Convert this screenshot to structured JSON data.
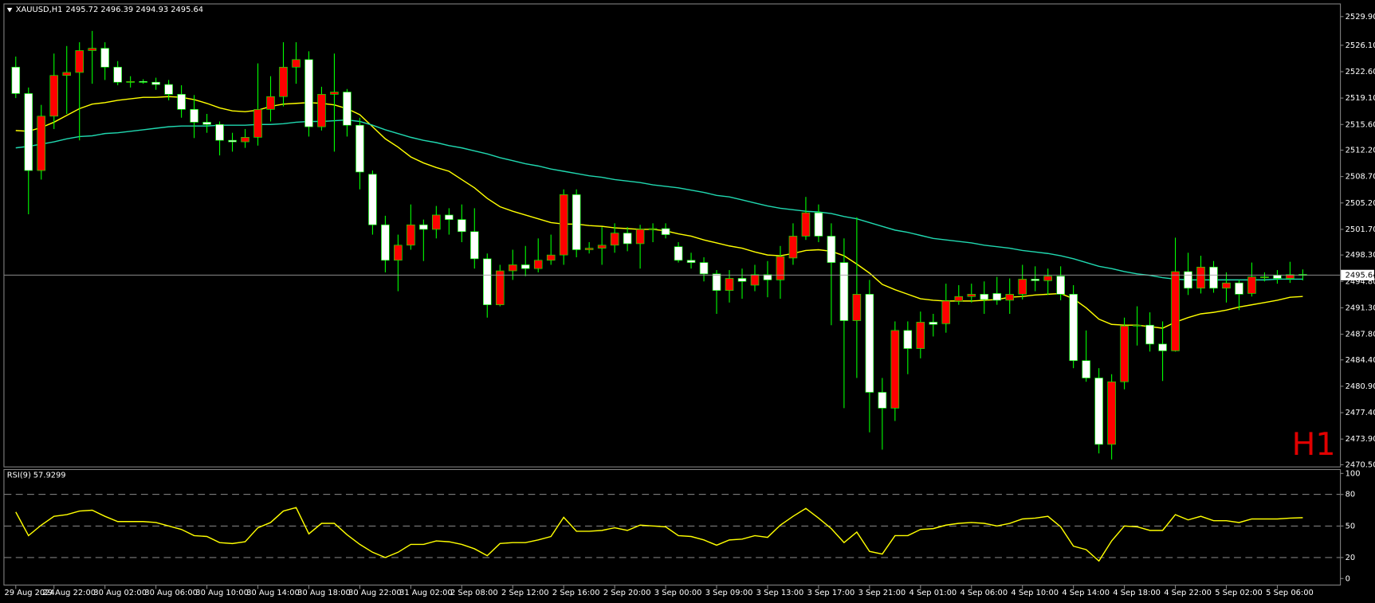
{
  "chart_data": [
    {
      "type": "candlestick",
      "title": "XAUUSD,H1",
      "up_color": "#ff0000",
      "down_color": "#ffffff",
      "wick_color": "#00ff00",
      "open": [
        2523.2,
        2519.7,
        2509.5,
        2516.7,
        2522.1,
        2522.5,
        2525.4,
        2525.7,
        2523.2,
        2521.2,
        2521.3,
        2521.2,
        2520.9,
        2519.6,
        2517.6,
        2515.9,
        2515.6,
        2513.5,
        2513.3,
        2513.9,
        2517.6,
        2519.3,
        2523.2,
        2524.2,
        2515.3,
        2519.6,
        2519.9,
        2515.5,
        2509.0,
        2502.3,
        2497.6,
        2499.6,
        2502.3,
        2501.7,
        2503.6,
        2503.0,
        2501.4,
        2497.8,
        2491.7,
        2496.2,
        2497.0,
        2496.5,
        2497.6,
        2498.3,
        2506.3,
        2499.0,
        2499.2,
        2499.6,
        2501.2,
        2499.8,
        2501.7,
        2501.8,
        2499.4,
        2497.6,
        2497.3,
        2495.8,
        2493.6,
        2495.2,
        2494.3,
        2495.7,
        2495.0,
        2497.9,
        2500.8,
        2503.9,
        2500.8,
        2497.3,
        2489.6,
        2493.1,
        2480.1,
        2478.0,
        2488.3,
        2485.9,
        2489.4,
        2489.2,
        2492.2,
        2492.8,
        2493.1,
        2493.2,
        2492.3,
        2493.1,
        2495.1,
        2494.9,
        2495.5,
        2493.1,
        2484.3,
        2482.0,
        2473.2,
        2481.5,
        2488.9,
        2489.0,
        2486.5,
        2485.6,
        2496.1,
        2493.9,
        2496.7,
        2493.9,
        2494.6,
        2493.2,
        2495.4,
        2495.6,
        2495.2,
        2495.72
      ],
      "high": [
        2524.6,
        2520.5,
        2518.2,
        2525.0,
        2526.0,
        2526.5,
        2528.0,
        2526.5,
        2524.0,
        2522.0,
        2521.6,
        2521.8,
        2521.5,
        2520.8,
        2519.5,
        2517.0,
        2516.0,
        2514.5,
        2515.0,
        2523.7,
        2522.0,
        2526.5,
        2526.5,
        2525.3,
        2520.6,
        2525.0,
        2520.3,
        2516.5,
        2509.5,
        2503.5,
        2501.0,
        2505.0,
        2503.0,
        2504.8,
        2504.5,
        2505.0,
        2504.5,
        2498.5,
        2497.0,
        2499.0,
        2499.5,
        2500.5,
        2501.0,
        2507.0,
        2507.0,
        2500.0,
        2502.0,
        2502.5,
        2502.0,
        2502.3,
        2502.5,
        2502.5,
        2500.0,
        2498.6,
        2498.0,
        2496.3,
        2496.3,
        2496.5,
        2497.0,
        2497.5,
        2499.5,
        2502.5,
        2506.0,
        2505.0,
        2502.5,
        2500.5,
        2503.3,
        2495.0,
        2482.0,
        2489.5,
        2489.5,
        2490.8,
        2490.5,
        2494.5,
        2494.3,
        2494.5,
        2494.8,
        2495.4,
        2495.2,
        2497.0,
        2496.8,
        2496.5,
        2496.8,
        2494.3,
        2488.3,
        2483.3,
        2482.5,
        2490.0,
        2491.5,
        2490.7,
        2489.5,
        2500.6,
        2498.6,
        2498.2,
        2497.5,
        2496.0,
        2495.0,
        2497.3,
        2496.0,
        2496.3,
        2497.4,
        2496.39
      ],
      "low": [
        2519.1,
        2503.7,
        2508.3,
        2515.0,
        2517.0,
        2513.5,
        2521.0,
        2521.5,
        2520.8,
        2520.5,
        2521.0,
        2520.2,
        2518.8,
        2516.5,
        2513.8,
        2514.5,
        2511.5,
        2512.0,
        2512.5,
        2512.8,
        2516.0,
        2518.0,
        2521.0,
        2514.0,
        2514.8,
        2512.0,
        2514.0,
        2507.0,
        2501.0,
        2496.0,
        2493.5,
        2499.0,
        2497.5,
        2500.5,
        2501.0,
        2500.0,
        2496.5,
        2490.0,
        2491.5,
        2495.0,
        2495.5,
        2496.0,
        2497.0,
        2497.0,
        2498.0,
        2498.5,
        2497.0,
        2498.6,
        2498.8,
        2496.5,
        2500.0,
        2500.5,
        2497.3,
        2496.5,
        2494.8,
        2490.5,
        2492.0,
        2492.5,
        2493.5,
        2492.7,
        2492.5,
        2497.0,
        2500.3,
        2500.0,
        2489.0,
        2478.0,
        2482.0,
        2474.8,
        2472.5,
        2476.3,
        2482.5,
        2484.6,
        2487.5,
        2488.0,
        2491.7,
        2492.0,
        2490.5,
        2491.7,
        2490.5,
        2492.4,
        2493.5,
        2493.0,
        2492.3,
        2483.3,
        2481.5,
        2472.0,
        2471.2,
        2480.5,
        2486.3,
        2485.5,
        2481.6,
        2485.5,
        2493.0,
        2493.2,
        2493.3,
        2492.0,
        2491.0,
        2492.8,
        2494.8,
        2494.5,
        2494.6,
        2494.93
      ],
      "close": [
        2519.7,
        2509.5,
        2516.7,
        2522.1,
        2522.5,
        2525.4,
        2525.7,
        2523.2,
        2521.2,
        2521.3,
        2521.2,
        2520.9,
        2519.6,
        2517.6,
        2515.9,
        2515.6,
        2513.5,
        2513.3,
        2513.9,
        2517.6,
        2519.3,
        2523.2,
        2524.2,
        2515.3,
        2519.6,
        2519.9,
        2515.5,
        2509.3,
        2502.3,
        2497.6,
        2499.6,
        2502.3,
        2501.7,
        2503.6,
        2503.0,
        2501.4,
        2497.8,
        2491.7,
        2496.2,
        2497.0,
        2496.5,
        2497.6,
        2498.3,
        2506.3,
        2499.0,
        2499.2,
        2499.6,
        2501.2,
        2499.8,
        2501.7,
        2501.8,
        2501.0,
        2497.6,
        2497.3,
        2495.8,
        2493.6,
        2495.2,
        2494.8,
        2495.7,
        2495.0,
        2498.1,
        2500.8,
        2503.9,
        2500.8,
        2497.3,
        2489.6,
        2493.1,
        2480.1,
        2478.0,
        2488.3,
        2485.9,
        2489.4,
        2489.1,
        2492.2,
        2492.8,
        2493.1,
        2492.4,
        2492.3,
        2493.1,
        2495.1,
        2494.9,
        2495.5,
        2493.1,
        2484.3,
        2482.0,
        2473.2,
        2481.5,
        2488.9,
        2489.0,
        2486.5,
        2485.6,
        2496.1,
        2493.9,
        2496.7,
        2493.9,
        2494.6,
        2493.1,
        2495.4,
        2495.4,
        2495.2,
        2495.7,
        2495.64
      ],
      "series": [
        {
          "color": "#ffff00",
          "values": [
            2514.8,
            2514.7,
            2515.2,
            2515.9,
            2516.8,
            2517.7,
            2518.3,
            2518.5,
            2518.8,
            2519.0,
            2519.2,
            2519.2,
            2519.3,
            2519.2,
            2518.9,
            2518.4,
            2517.8,
            2517.4,
            2517.3,
            2517.5,
            2518.0,
            2518.3,
            2518.4,
            2518.5,
            2518.4,
            2518.2,
            2517.7,
            2516.9,
            2515.3,
            2513.7,
            2512.6,
            2511.3,
            2510.5,
            2509.9,
            2509.4,
            2508.3,
            2507.2,
            2505.8,
            2504.7,
            2504.1,
            2503.6,
            2503.1,
            2502.6,
            2502.4,
            2502.4,
            2502.2,
            2502.1,
            2501.9,
            2501.8,
            2501.7,
            2501.7,
            2501.5,
            2501.1,
            2500.8,
            2500.3,
            2499.9,
            2499.5,
            2499.2,
            2498.7,
            2498.3,
            2498.2,
            2498.5,
            2498.9,
            2499.0,
            2498.8,
            2498.2,
            2497.1,
            2495.9,
            2494.4,
            2493.7,
            2493.1,
            2492.5,
            2492.3,
            2492.2,
            2492.2,
            2492.2,
            2492.3,
            2492.4,
            2492.7,
            2492.8,
            2493.0,
            2493.1,
            2493.2,
            2492.5,
            2491.3,
            2489.8,
            2489.1,
            2489.0,
            2489.0,
            2488.8,
            2488.6,
            2489.4,
            2490.0,
            2490.5,
            2490.7,
            2491.0,
            2491.4,
            2491.7,
            2492.0,
            2492.3,
            2492.7,
            2492.8
          ]
        },
        {
          "color": "#20d8b0",
          "values": [
            2512.5,
            2512.7,
            2513.0,
            2513.3,
            2513.7,
            2514.0,
            2514.1,
            2514.4,
            2514.5,
            2514.7,
            2514.9,
            2515.1,
            2515.3,
            2515.4,
            2515.4,
            2515.4,
            2515.5,
            2515.5,
            2515.5,
            2515.6,
            2515.6,
            2515.7,
            2515.9,
            2516.0,
            2516.0,
            2516.1,
            2516.2,
            2516.0,
            2515.5,
            2514.9,
            2514.4,
            2513.9,
            2513.5,
            2513.2,
            2512.8,
            2512.5,
            2512.1,
            2511.7,
            2511.2,
            2510.8,
            2510.4,
            2510.1,
            2509.7,
            2509.4,
            2509.1,
            2508.8,
            2508.6,
            2508.3,
            2508.1,
            2507.9,
            2507.6,
            2507.4,
            2507.2,
            2506.9,
            2506.6,
            2506.2,
            2506.0,
            2505.6,
            2505.2,
            2504.8,
            2504.5,
            2504.3,
            2504.1,
            2504.0,
            2503.8,
            2503.4,
            2503.1,
            2502.6,
            2502.1,
            2501.6,
            2501.3,
            2500.9,
            2500.5,
            2500.3,
            2500.1,
            2499.9,
            2499.6,
            2499.4,
            2499.2,
            2498.9,
            2498.7,
            2498.5,
            2498.2,
            2497.8,
            2497.3,
            2496.8,
            2496.5,
            2496.1,
            2495.8,
            2495.6,
            2495.3,
            2495.1,
            2495.0,
            2495.0,
            2495.0,
            2495.0,
            2495.0,
            2495.0,
            2495.0,
            2495.1,
            2495.1,
            2495.1
          ]
        }
      ],
      "watermark": "H1",
      "ylim": [
        2470.27,
        2531.52
      ],
      "yticks": [
        {
          "value": 2529.9,
          "label": "2529.90"
        },
        {
          "value": 2526.1,
          "label": "2526.10"
        },
        {
          "value": 2522.6,
          "label": "2522.60"
        },
        {
          "value": 2519.1,
          "label": "2519.10"
        },
        {
          "value": 2515.6,
          "label": "2515.60"
        },
        {
          "value": 2512.2,
          "label": "2512.20"
        },
        {
          "value": 2508.7,
          "label": "2508.70"
        },
        {
          "value": 2505.2,
          "label": "2505.20"
        },
        {
          "value": 2501.7,
          "label": "2501.70"
        },
        {
          "value": 2498.3,
          "label": "2498.30"
        },
        {
          "value": 2494.8,
          "label": "2494.80"
        },
        {
          "value": 2491.3,
          "label": "2491.30"
        },
        {
          "value": 2487.8,
          "label": "2487.80"
        },
        {
          "value": 2484.4,
          "label": "2484.40"
        },
        {
          "value": 2480.9,
          "label": "2480.90"
        },
        {
          "value": 2477.4,
          "label": "2477.40"
        },
        {
          "value": 2473.9,
          "label": "2473.90"
        },
        {
          "value": 2470.5,
          "label": "2470.50"
        }
      ],
      "xticks": [
        {
          "value": 0,
          "label": "29 Aug 2024"
        },
        {
          "value": 3,
          "label": "29 Aug 22:00"
        },
        {
          "value": 7,
          "label": "30 Aug 02:00"
        },
        {
          "value": 11,
          "label": "30 Aug 06:00"
        },
        {
          "value": 15,
          "label": "30 Aug 10:00"
        },
        {
          "value": 19,
          "label": "30 Aug 14:00"
        },
        {
          "value": 23,
          "label": "30 Aug 18:00"
        },
        {
          "value": 27,
          "label": "30 Aug 22:00"
        },
        {
          "value": 31,
          "label": "31 Aug 02:00"
        },
        {
          "value": 35,
          "label": "2 Sep 08:00"
        },
        {
          "value": 39,
          "label": "2 Sep 12:00"
        },
        {
          "value": 43,
          "label": "2 Sep 16:00"
        },
        {
          "value": 47,
          "label": "2 Sep 20:00"
        },
        {
          "value": 51,
          "label": "3 Sep 00:00"
        },
        {
          "value": 55,
          "label": "3 Sep 09:00"
        },
        {
          "value": 59,
          "label": "3 Sep 13:00"
        },
        {
          "value": 63,
          "label": "3 Sep 17:00"
        },
        {
          "value": 67,
          "label": "3 Sep 21:00"
        },
        {
          "value": 71,
          "label": "4 Sep 01:00"
        },
        {
          "value": 75,
          "label": "4 Sep 06:00"
        },
        {
          "value": 79,
          "label": "4 Sep 10:00"
        },
        {
          "value": 83,
          "label": "4 Sep 14:00"
        },
        {
          "value": 87,
          "label": "4 Sep 18:00"
        },
        {
          "value": 91,
          "label": "4 Sep 22:00"
        },
        {
          "value": 95,
          "label": "5 Sep 02:00"
        },
        {
          "value": 99,
          "label": "5 Sep 06:00"
        }
      ]
    },
    {
      "type": "line",
      "title": "RSI(9)",
      "color": "#ffff00",
      "values": [
        63.3,
        40.8,
        50.8,
        59.2,
        60.8,
        64.2,
        65.0,
        59.2,
        54.2,
        54.2,
        54.2,
        53.3,
        50.0,
        46.7,
        40.8,
        40.0,
        34.2,
        33.3,
        35.0,
        48.3,
        53.3,
        64.2,
        67.5,
        42.5,
        52.5,
        52.5,
        41.7,
        32.5,
        25.0,
        20.0,
        25.0,
        32.5,
        32.5,
        35.8,
        35.0,
        32.5,
        28.3,
        21.7,
        33.3,
        34.2,
        34.2,
        36.7,
        40.0,
        58.3,
        45.0,
        45.0,
        45.8,
        48.3,
        45.8,
        50.8,
        50.0,
        49.2,
        40.8,
        40.0,
        36.7,
        31.7,
        36.7,
        37.5,
        40.8,
        39.2,
        50.8,
        59.2,
        66.7,
        57.5,
        47.5,
        34.2,
        44.2,
        25.8,
        23.3,
        40.8,
        40.8,
        46.7,
        47.5,
        50.8,
        52.5,
        53.3,
        52.5,
        50.0,
        52.5,
        56.7,
        57.5,
        59.2,
        49.2,
        30.8,
        27.5,
        16.7,
        35.8,
        50.0,
        49.2,
        45.8,
        45.8,
        60.8,
        55.8,
        59.2,
        55.0,
        55.0,
        53.3,
        56.7,
        56.7,
        56.7,
        57.5,
        57.9299
      ],
      "levels": [
        80,
        50,
        20
      ],
      "ylim": [
        -3.3,
        103.3
      ],
      "yticks": [
        100,
        80,
        50,
        20,
        0
      ]
    }
  ]
}
